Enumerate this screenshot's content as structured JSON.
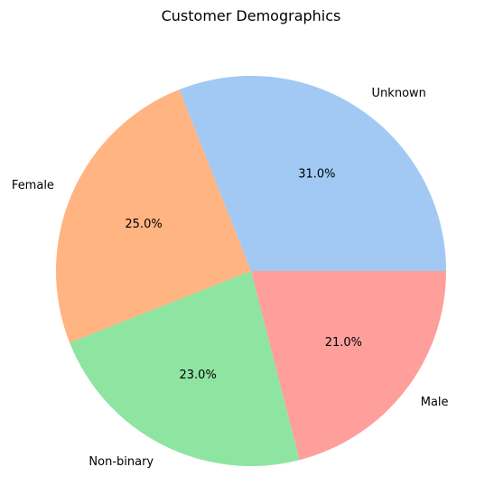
{
  "chart_data": {
    "type": "pie",
    "title": "Customer Demographics",
    "slices": [
      {
        "label": "Unknown",
        "value": 31.0,
        "pct_label": "31.0%",
        "color": "#a1c9f4"
      },
      {
        "label": "Female",
        "value": 25.0,
        "pct_label": "25.0%",
        "color": "#ffb482"
      },
      {
        "label": "Non-binary",
        "value": 23.0,
        "pct_label": "23.0%",
        "color": "#8de5a1"
      },
      {
        "label": "Male",
        "value": 21.0,
        "pct_label": "21.0%",
        "color": "#ff9f9b"
      }
    ],
    "start_angle_deg": 0,
    "direction": "counterclockwise"
  }
}
